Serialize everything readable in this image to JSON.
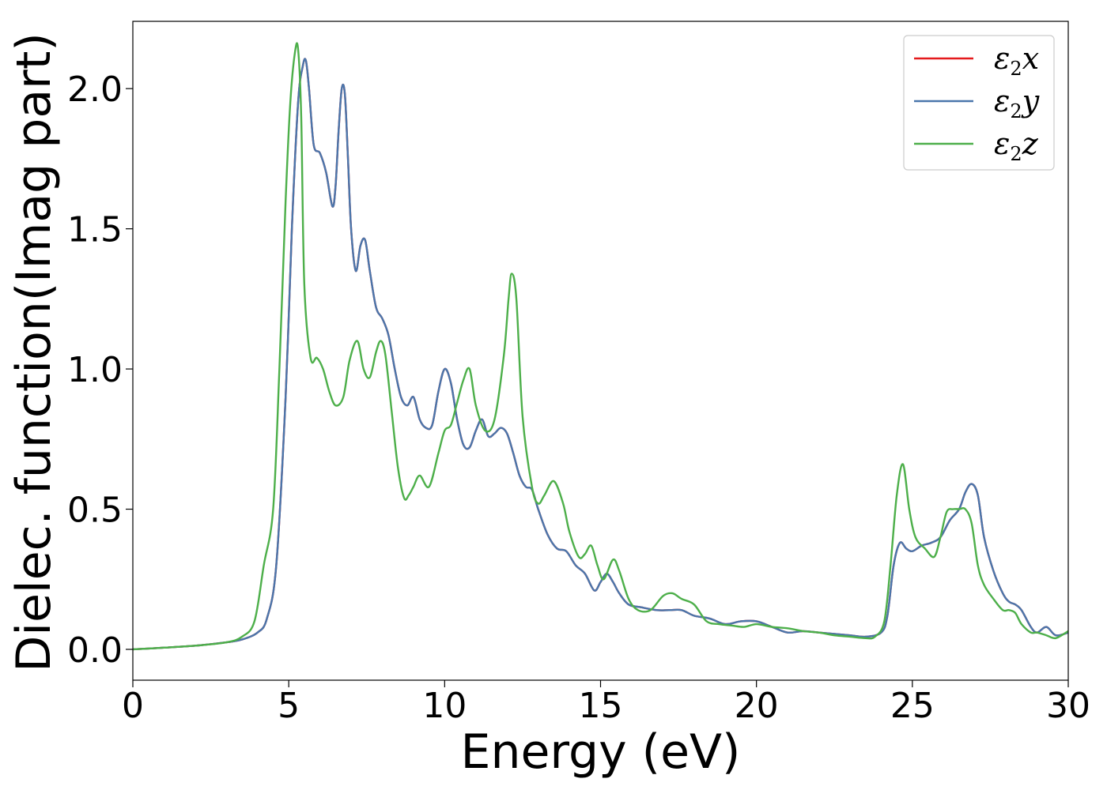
{
  "chart_data": {
    "type": "line",
    "xlabel": "Energy (eV)",
    "ylabel": "Dielec. function(Imag part)",
    "xlim": [
      0,
      30
    ],
    "ylim": [
      -0.11,
      2.24
    ],
    "xticks": [
      0,
      5,
      10,
      15,
      20,
      25,
      30
    ],
    "yticks": [
      0.0,
      0.5,
      1.0,
      1.5,
      2.0
    ],
    "xtick_labels": [
      "0",
      "5",
      "10",
      "15",
      "20",
      "25",
      "30"
    ],
    "ytick_labels": [
      "0.0",
      "0.5",
      "1.0",
      "1.5",
      "2.0"
    ],
    "grid": false,
    "legend_position": "top-right",
    "series": [
      {
        "name": "ε2x",
        "legend_base": "ε",
        "legend_sub": "2",
        "legend_var": "x",
        "color": "#e41a1c",
        "x": [
          0,
          1,
          2,
          3,
          3.5,
          4,
          4.3,
          4.6,
          4.9,
          5.1,
          5.3,
          5.45,
          5.55,
          5.65,
          5.8,
          6.0,
          6.2,
          6.4,
          6.5,
          6.6,
          6.7,
          6.8,
          6.9,
          7.0,
          7.15,
          7.3,
          7.45,
          7.6,
          7.8,
          8.0,
          8.2,
          8.4,
          8.6,
          8.8,
          9.0,
          9.2,
          9.4,
          9.6,
          9.8,
          10.0,
          10.2,
          10.4,
          10.6,
          10.8,
          11.0,
          11.2,
          11.4,
          11.6,
          11.8,
          12.0,
          12.2,
          12.4,
          12.6,
          12.8,
          13.0,
          13.3,
          13.6,
          13.9,
          14.2,
          14.5,
          14.8,
          15.0,
          15.2,
          15.4,
          15.6,
          15.9,
          16.3,
          16.8,
          17.2,
          17.6,
          18.0,
          18.5,
          19.0,
          19.5,
          20.0,
          20.5,
          21.0,
          21.5,
          22.0,
          22.5,
          23.0,
          23.5,
          24.0,
          24.2,
          24.4,
          24.6,
          24.8,
          25.0,
          25.3,
          25.6,
          25.9,
          26.2,
          26.5,
          26.7,
          26.9,
          27.1,
          27.3,
          27.6,
          27.9,
          28.1,
          28.3,
          28.5,
          28.8,
          29.0,
          29.3,
          29.6,
          30.0
        ],
        "y": [
          0.0,
          0.006,
          0.013,
          0.025,
          0.035,
          0.06,
          0.11,
          0.3,
          0.9,
          1.5,
          1.95,
          2.08,
          2.1,
          2.0,
          1.8,
          1.77,
          1.7,
          1.58,
          1.65,
          1.85,
          2.0,
          1.98,
          1.75,
          1.5,
          1.35,
          1.44,
          1.46,
          1.35,
          1.22,
          1.18,
          1.12,
          1.0,
          0.9,
          0.87,
          0.9,
          0.82,
          0.79,
          0.8,
          0.92,
          1.0,
          0.95,
          0.82,
          0.73,
          0.72,
          0.78,
          0.82,
          0.76,
          0.77,
          0.79,
          0.77,
          0.7,
          0.62,
          0.58,
          0.57,
          0.5,
          0.41,
          0.36,
          0.35,
          0.3,
          0.27,
          0.21,
          0.24,
          0.27,
          0.24,
          0.2,
          0.16,
          0.15,
          0.14,
          0.14,
          0.14,
          0.12,
          0.11,
          0.09,
          0.1,
          0.1,
          0.08,
          0.06,
          0.065,
          0.06,
          0.055,
          0.05,
          0.045,
          0.06,
          0.12,
          0.3,
          0.38,
          0.36,
          0.35,
          0.37,
          0.38,
          0.4,
          0.46,
          0.5,
          0.56,
          0.59,
          0.55,
          0.4,
          0.28,
          0.2,
          0.17,
          0.16,
          0.14,
          0.08,
          0.06,
          0.08,
          0.05,
          0.06
        ]
      },
      {
        "name": "ε2y",
        "legend_base": "ε",
        "legend_sub": "2",
        "legend_var": "y",
        "color": "#4a76ab",
        "x": [
          0,
          1,
          2,
          3,
          3.5,
          4,
          4.3,
          4.6,
          4.9,
          5.1,
          5.3,
          5.45,
          5.55,
          5.65,
          5.8,
          6.0,
          6.2,
          6.4,
          6.5,
          6.6,
          6.7,
          6.8,
          6.9,
          7.0,
          7.15,
          7.3,
          7.45,
          7.6,
          7.8,
          8.0,
          8.2,
          8.4,
          8.6,
          8.8,
          9.0,
          9.2,
          9.4,
          9.6,
          9.8,
          10.0,
          10.2,
          10.4,
          10.6,
          10.8,
          11.0,
          11.2,
          11.4,
          11.6,
          11.8,
          12.0,
          12.2,
          12.4,
          12.6,
          12.8,
          13.0,
          13.3,
          13.6,
          13.9,
          14.2,
          14.5,
          14.8,
          15.0,
          15.2,
          15.4,
          15.6,
          15.9,
          16.3,
          16.8,
          17.2,
          17.6,
          18.0,
          18.5,
          19.0,
          19.5,
          20.0,
          20.5,
          21.0,
          21.5,
          22.0,
          22.5,
          23.0,
          23.5,
          24.0,
          24.2,
          24.4,
          24.6,
          24.8,
          25.0,
          25.3,
          25.6,
          25.9,
          26.2,
          26.5,
          26.7,
          26.9,
          27.1,
          27.3,
          27.6,
          27.9,
          28.1,
          28.3,
          28.5,
          28.8,
          29.0,
          29.3,
          29.6,
          30.0
        ],
        "y": [
          0.0,
          0.006,
          0.013,
          0.025,
          0.035,
          0.06,
          0.11,
          0.3,
          0.9,
          1.5,
          1.95,
          2.08,
          2.1,
          2.0,
          1.8,
          1.77,
          1.7,
          1.58,
          1.65,
          1.85,
          2.0,
          1.98,
          1.75,
          1.5,
          1.35,
          1.44,
          1.46,
          1.35,
          1.22,
          1.18,
          1.12,
          1.0,
          0.9,
          0.87,
          0.9,
          0.82,
          0.79,
          0.8,
          0.92,
          1.0,
          0.95,
          0.82,
          0.73,
          0.72,
          0.78,
          0.82,
          0.76,
          0.77,
          0.79,
          0.77,
          0.7,
          0.62,
          0.58,
          0.57,
          0.5,
          0.41,
          0.36,
          0.35,
          0.3,
          0.27,
          0.21,
          0.24,
          0.27,
          0.24,
          0.2,
          0.16,
          0.15,
          0.14,
          0.14,
          0.14,
          0.12,
          0.11,
          0.09,
          0.1,
          0.1,
          0.08,
          0.06,
          0.065,
          0.06,
          0.055,
          0.05,
          0.045,
          0.06,
          0.12,
          0.3,
          0.38,
          0.36,
          0.35,
          0.37,
          0.38,
          0.4,
          0.46,
          0.5,
          0.56,
          0.59,
          0.55,
          0.4,
          0.28,
          0.2,
          0.17,
          0.16,
          0.14,
          0.08,
          0.06,
          0.08,
          0.05,
          0.06
        ]
      },
      {
        "name": "ε2z",
        "legend_base": "ε",
        "legend_sub": "2",
        "legend_var": "z",
        "color": "#4daf4a",
        "x": [
          0,
          1,
          2,
          3,
          3.5,
          3.9,
          4.2,
          4.5,
          4.7,
          4.9,
          5.05,
          5.2,
          5.3,
          5.4,
          5.5,
          5.7,
          5.9,
          6.1,
          6.3,
          6.5,
          6.75,
          6.95,
          7.2,
          7.4,
          7.6,
          7.8,
          7.95,
          8.1,
          8.3,
          8.5,
          8.7,
          8.85,
          9.0,
          9.2,
          9.5,
          9.8,
          10.0,
          10.2,
          10.4,
          10.6,
          10.8,
          11.0,
          11.3,
          11.6,
          11.9,
          12.05,
          12.15,
          12.3,
          12.5,
          12.8,
          13.0,
          13.2,
          13.5,
          13.8,
          14.0,
          14.3,
          14.5,
          14.7,
          14.9,
          15.1,
          15.4,
          15.6,
          15.9,
          16.2,
          16.6,
          17.0,
          17.3,
          17.6,
          18.0,
          18.4,
          18.8,
          19.2,
          19.6,
          20.0,
          20.5,
          21.0,
          21.5,
          22.0,
          22.5,
          23.0,
          23.5,
          23.8,
          24.1,
          24.3,
          24.5,
          24.7,
          24.9,
          25.1,
          25.4,
          25.7,
          25.9,
          26.1,
          26.3,
          26.5,
          26.7,
          26.9,
          27.1,
          27.3,
          27.6,
          27.9,
          28.1,
          28.3,
          28.5,
          28.8,
          29.0,
          29.3,
          29.6,
          30.0
        ],
        "y": [
          0.0,
          0.006,
          0.013,
          0.025,
          0.045,
          0.1,
          0.3,
          0.5,
          1.0,
          1.6,
          1.95,
          2.13,
          2.14,
          1.9,
          1.3,
          1.04,
          1.04,
          1.0,
          0.92,
          0.87,
          0.9,
          1.03,
          1.1,
          1.0,
          0.97,
          1.06,
          1.1,
          1.05,
          0.85,
          0.65,
          0.54,
          0.55,
          0.58,
          0.62,
          0.58,
          0.7,
          0.78,
          0.8,
          0.88,
          0.96,
          1.0,
          0.87,
          0.78,
          0.82,
          1.05,
          1.25,
          1.34,
          1.25,
          0.83,
          0.58,
          0.52,
          0.55,
          0.6,
          0.52,
          0.42,
          0.33,
          0.34,
          0.37,
          0.3,
          0.25,
          0.32,
          0.28,
          0.18,
          0.14,
          0.14,
          0.19,
          0.2,
          0.18,
          0.16,
          0.1,
          0.09,
          0.085,
          0.08,
          0.09,
          0.08,
          0.075,
          0.065,
          0.06,
          0.05,
          0.045,
          0.04,
          0.045,
          0.1,
          0.3,
          0.55,
          0.66,
          0.5,
          0.4,
          0.36,
          0.33,
          0.4,
          0.49,
          0.5,
          0.5,
          0.5,
          0.45,
          0.3,
          0.23,
          0.18,
          0.14,
          0.14,
          0.13,
          0.09,
          0.06,
          0.06,
          0.05,
          0.04,
          0.065
        ]
      }
    ]
  }
}
